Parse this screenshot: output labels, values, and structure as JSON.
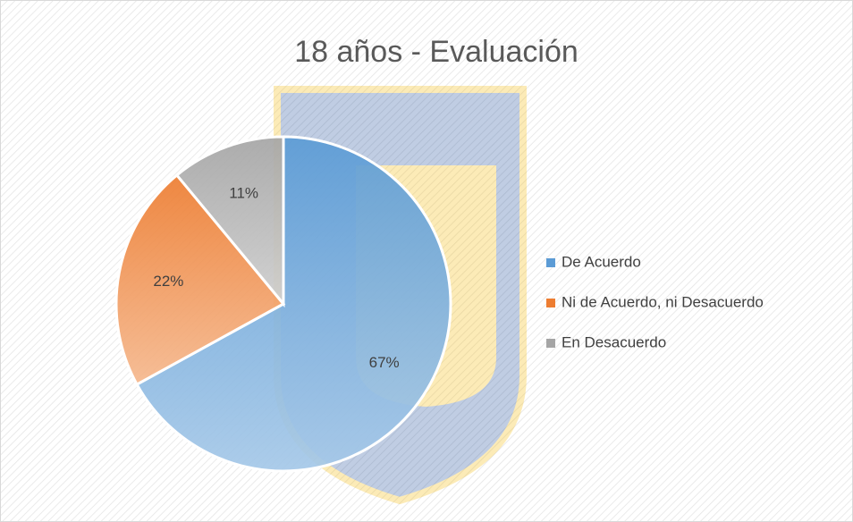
{
  "chart_data": {
    "type": "pie",
    "title": "18 años - Evaluación",
    "categories": [
      "De Acuerdo",
      "Ni de Acuerdo, ni Desacuerdo",
      "En Desacuerdo"
    ],
    "values": [
      67,
      22,
      11
    ],
    "value_labels": [
      "67%",
      "22%",
      "11%"
    ],
    "colors": [
      "#5b9bd5",
      "#ed7d31",
      "#a5a5a5"
    ],
    "legend": "right"
  }
}
